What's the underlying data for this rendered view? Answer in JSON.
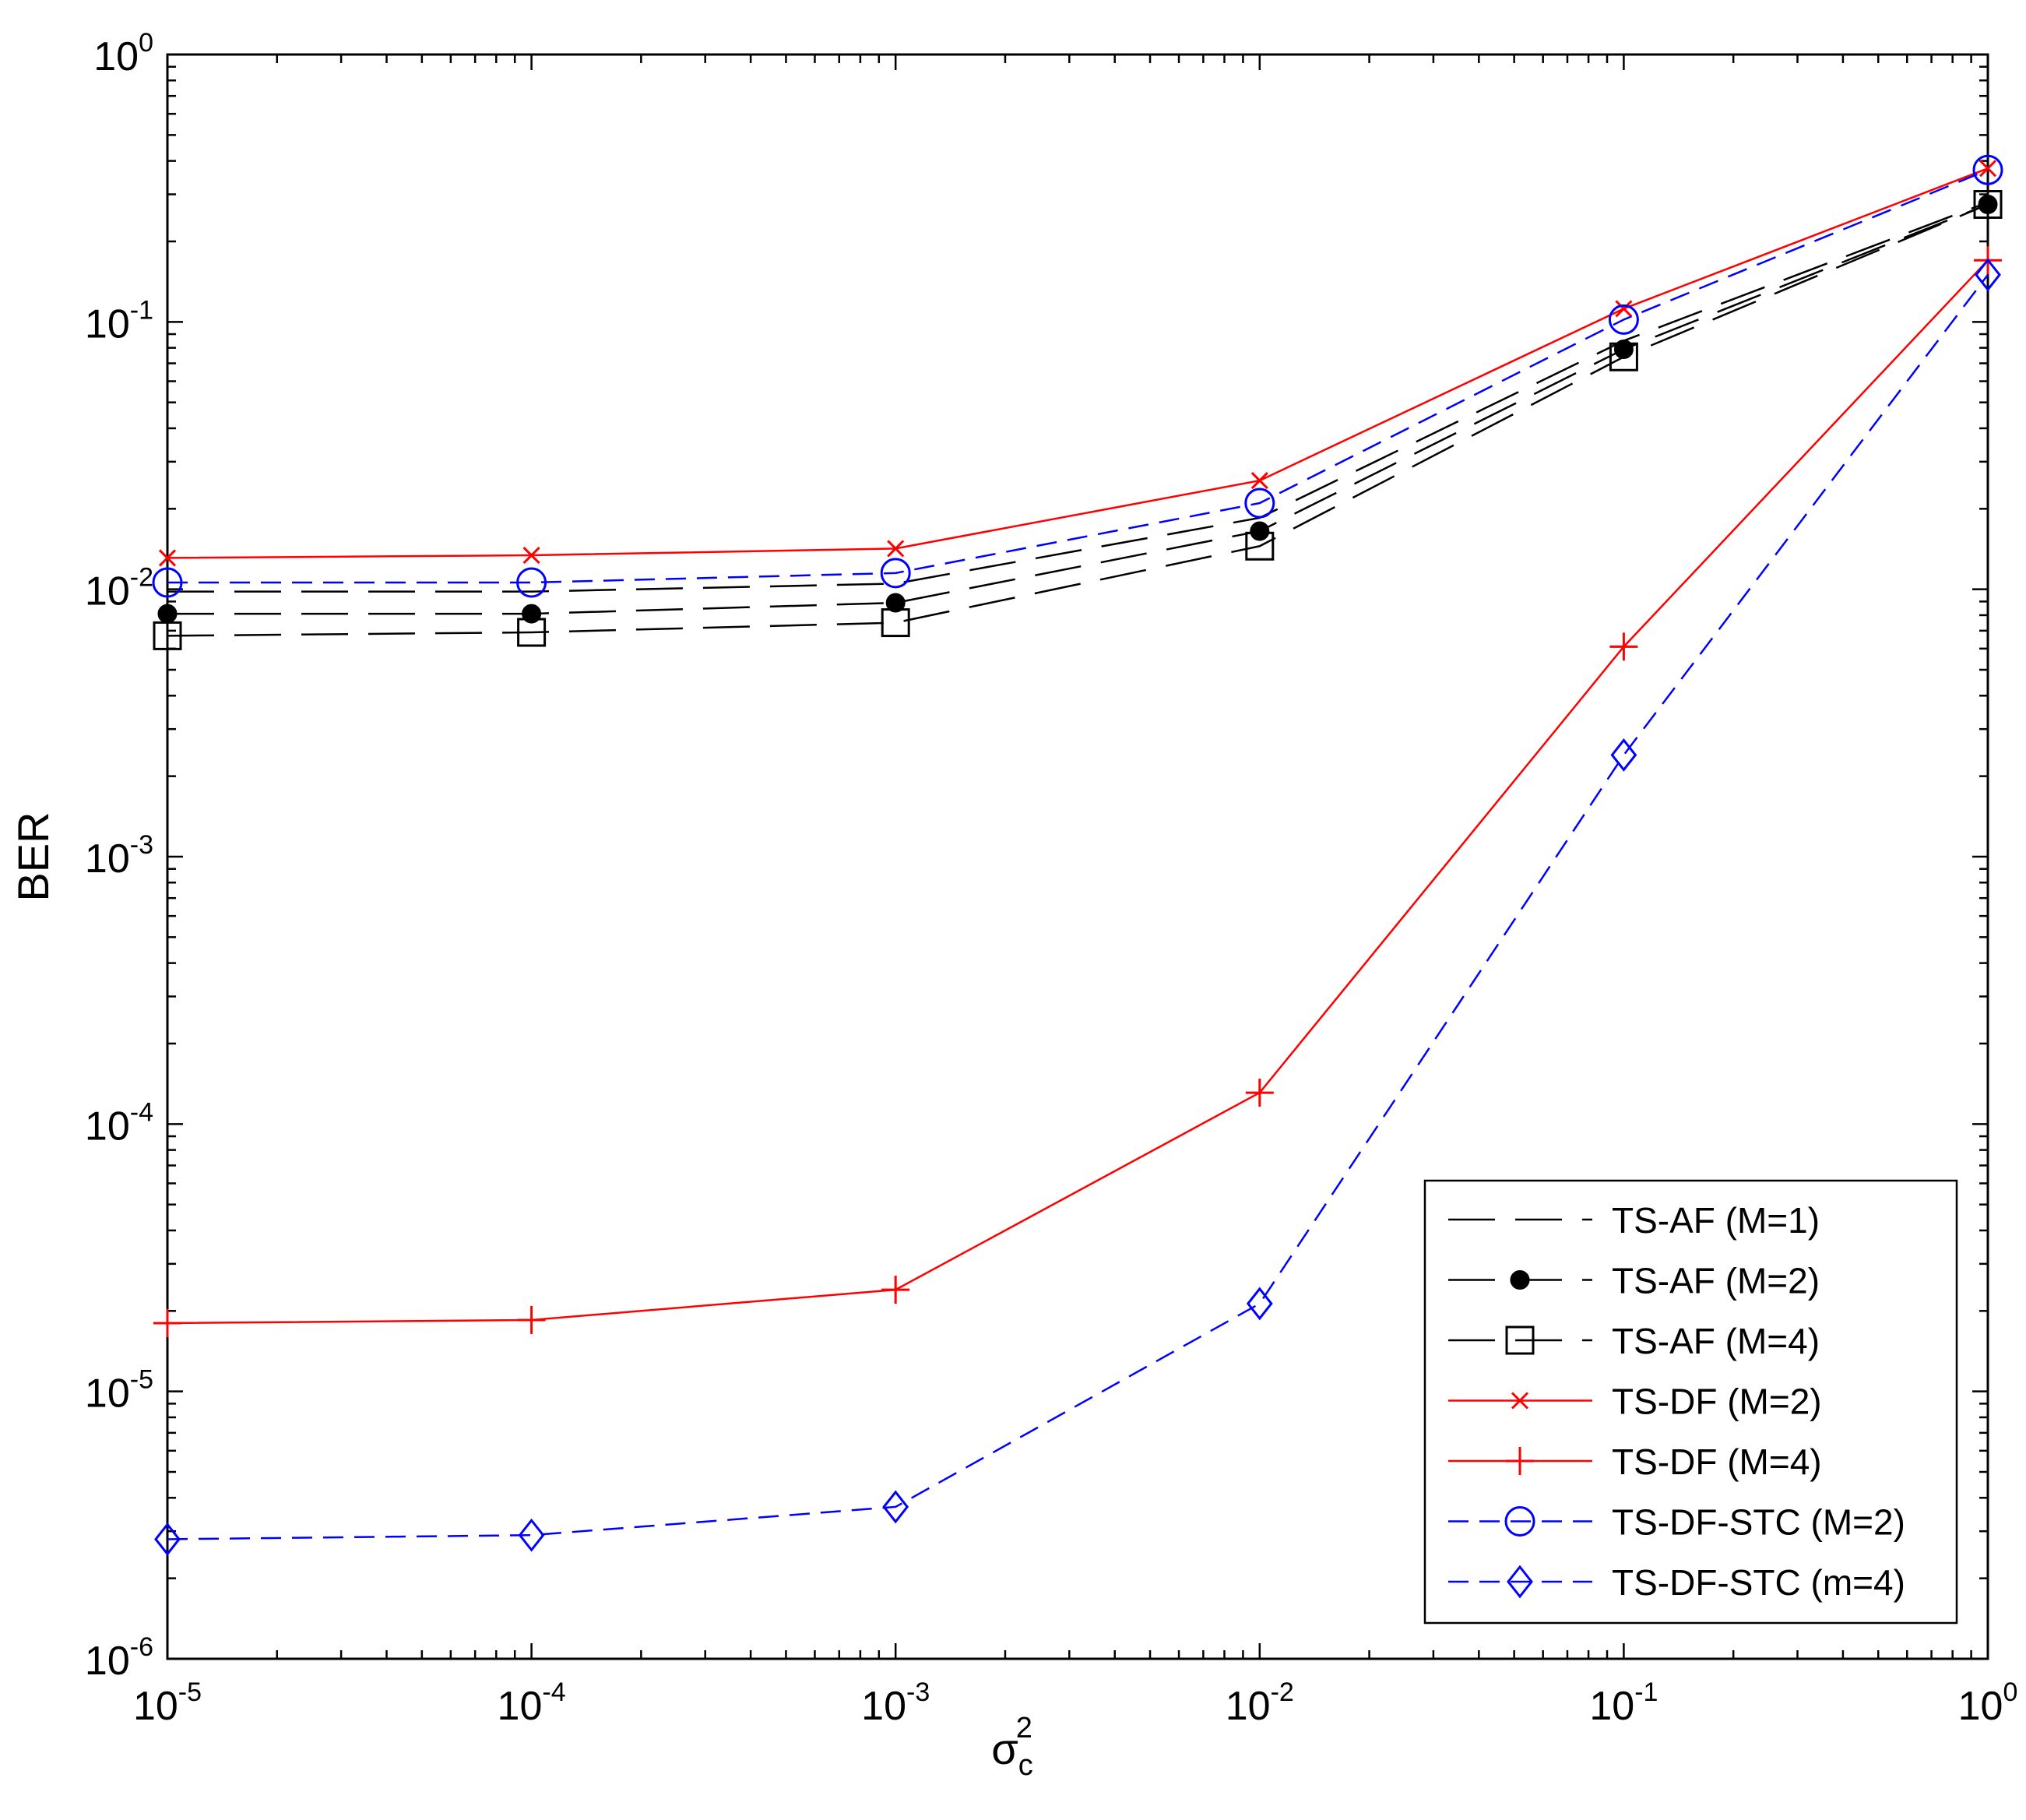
{
  "chart_data": {
    "type": "line",
    "xlabel": "σ",
    "xlabel_sub": "c",
    "xlabel_sup": "2",
    "ylabel": "BER",
    "x_scale": "log",
    "y_scale": "log",
    "xlim": [
      1e-05,
      1
    ],
    "ylim": [
      1e-06,
      1
    ],
    "x": [
      1e-05,
      0.0001,
      0.001,
      0.01,
      0.1,
      1
    ],
    "x_ticks": [
      {
        "base": "10",
        "exp": "-5"
      },
      {
        "base": "10",
        "exp": "-4"
      },
      {
        "base": "10",
        "exp": "-3"
      },
      {
        "base": "10",
        "exp": "-2"
      },
      {
        "base": "10",
        "exp": "-1"
      },
      {
        "base": "10",
        "exp": "0"
      }
    ],
    "y_ticks": [
      {
        "base": "10",
        "exp": "0"
      },
      {
        "base": "10",
        "exp": "-1"
      },
      {
        "base": "10",
        "exp": "-2"
      },
      {
        "base": "10",
        "exp": "-3"
      },
      {
        "base": "10",
        "exp": "-4"
      },
      {
        "base": "10",
        "exp": "-5"
      },
      {
        "base": "10",
        "exp": "-6"
      }
    ],
    "grid": false,
    "legend_position": "bottom-right",
    "series": [
      {
        "name": "TS-AF (M=1)",
        "color": "#000000",
        "marker": "none",
        "dash": "long-dash",
        "values": [
          0.0098,
          0.0098,
          0.0105,
          0.0185,
          0.085,
          0.28
        ]
      },
      {
        "name": "TS-AF (M=2)",
        "color": "#000000",
        "marker": "filled-circle",
        "dash": "long-dash",
        "values": [
          0.0081,
          0.0081,
          0.0089,
          0.0165,
          0.079,
          0.275
        ]
      },
      {
        "name": "TS-AF (M=4)",
        "color": "#000000",
        "marker": "square",
        "dash": "long-dash",
        "values": [
          0.0067,
          0.0069,
          0.0075,
          0.0145,
          0.074,
          0.275
        ]
      },
      {
        "name": "TS-DF (M=2)",
        "color": "#ff0000",
        "marker": "x",
        "dash": "solid",
        "values": [
          0.0131,
          0.0134,
          0.0142,
          0.0255,
          0.112,
          0.375
        ]
      },
      {
        "name": "TS-DF (M=4)",
        "color": "#ff0000",
        "marker": "plus",
        "dash": "solid",
        "values": [
          1.8e-05,
          1.85e-05,
          2.4e-05,
          0.000131,
          0.0061,
          0.17
        ]
      },
      {
        "name": "TS-DF-STC (M=2)",
        "color": "#0000ff",
        "marker": "circle",
        "dash": "dash",
        "values": [
          0.0106,
          0.0106,
          0.0115,
          0.021,
          0.102,
          0.37
        ]
      },
      {
        "name": "TS-DF-STC (m=4)",
        "color": "#0000ff",
        "marker": "diamond",
        "dash": "dash",
        "values": [
          2.8e-06,
          2.9e-06,
          3.7e-06,
          2.13e-05,
          0.0024,
          0.15
        ]
      }
    ]
  }
}
